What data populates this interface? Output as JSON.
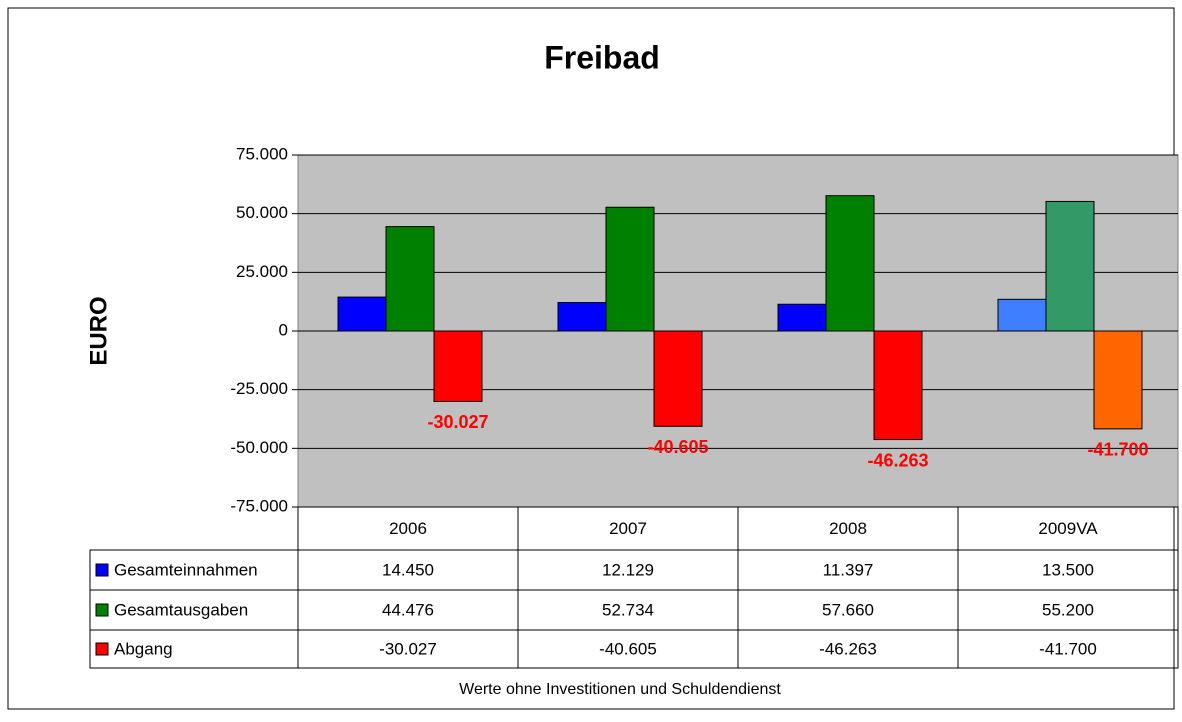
{
  "chart_data": {
    "type": "bar",
    "title": "Freibad",
    "y_label": "EURO",
    "footnote": "Werte ohne Investitionen und Schuldendienst",
    "categories": [
      "2006",
      "2007",
      "2008",
      "2009VA"
    ],
    "series": [
      {
        "name": "Gesamteinnahmen",
        "color": "#0000ff",
        "colors": [
          "#0000ff",
          "#0000ff",
          "#0000ff",
          "#3f7fff"
        ],
        "values": [
          14450,
          12129,
          11397,
          13500
        ],
        "value_labels": [
          "14.450",
          "12.129",
          "11.397",
          "13.500"
        ]
      },
      {
        "name": "Gesamtausgaben",
        "color": "#008000",
        "colors": [
          "#008000",
          "#008000",
          "#008000",
          "#339966"
        ],
        "values": [
          44476,
          52734,
          57660,
          55200
        ],
        "value_labels": [
          "44.476",
          "52.734",
          "57.660",
          "55.200"
        ]
      },
      {
        "name": "Abgang",
        "color": "#ff0000",
        "colors": [
          "#ff0000",
          "#ff0000",
          "#ff0000",
          "#ff6600"
        ],
        "values": [
          -30027,
          -40605,
          -46263,
          -41700
        ],
        "value_labels": [
          "-30.027",
          "-40.605",
          "-46.263",
          "-41.700"
        ]
      }
    ],
    "data_labels_series": 2,
    "ylim": [
      -75000,
      75000
    ],
    "yticks": [
      {
        "value": -75000,
        "label": "-75.000"
      },
      {
        "value": -50000,
        "label": "-50.000"
      },
      {
        "value": -25000,
        "label": "-25.000"
      },
      0,
      {
        "value": 25000,
        "label": "25.000"
      },
      {
        "value": 50000,
        "label": "50.000"
      },
      {
        "value": 75000,
        "label": "75.000"
      }
    ],
    "grid": true,
    "plot_background": "#c0c0c0",
    "data_table": true
  }
}
